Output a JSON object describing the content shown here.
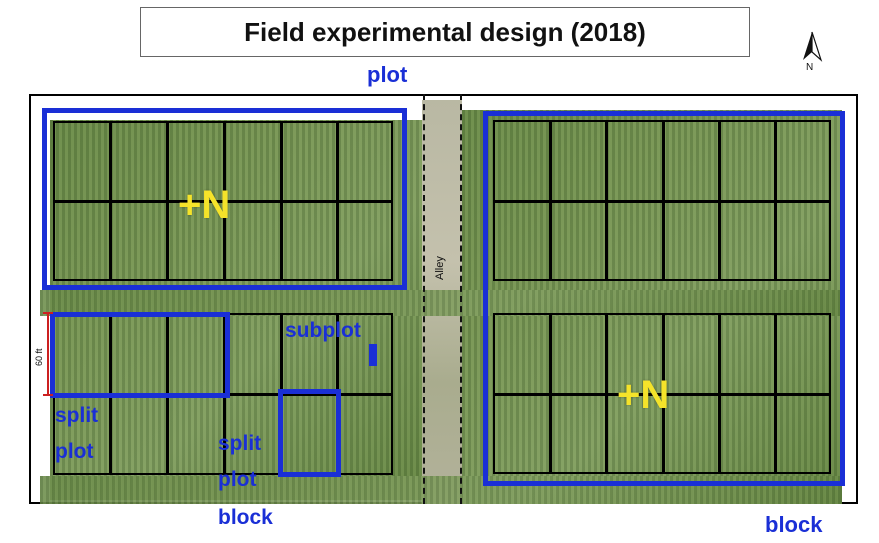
{
  "title": "Field experimental design (2018)",
  "north_label": "N",
  "alley_label": "Alley",
  "dimension_label": "60 ft",
  "labels": {
    "plot": "plot",
    "block": "block",
    "subplot": "subplot",
    "split_plot_line1": "split",
    "split_plot_line2": "plot",
    "split_plot_block_line1": "split",
    "split_plot_block_line2": "plot",
    "split_plot_block_line3": "block",
    "nitrogen_left": "+N",
    "nitrogen_right": "+N"
  },
  "colors": {
    "highlight_blue": "#1a2fd6",
    "nitrogen_yellow": "#f5e32a",
    "dimension_red": "#cc2020"
  }
}
